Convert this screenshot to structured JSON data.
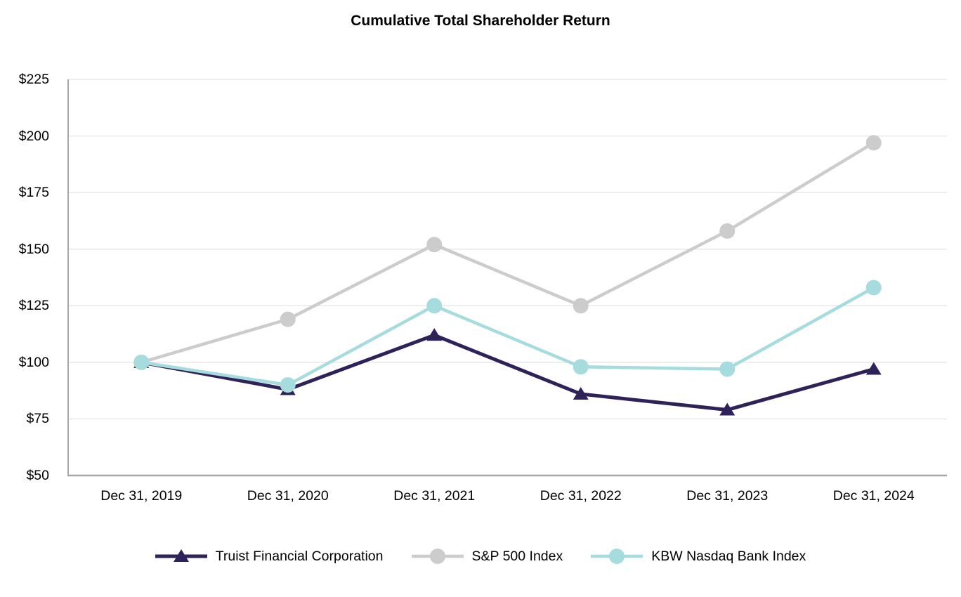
{
  "chart_data": {
    "type": "line",
    "title": "Cumulative Total Shareholder Return",
    "xlabel": "",
    "ylabel": "",
    "categories": [
      "Dec 31, 2019",
      "Dec 31, 2020",
      "Dec 31, 2021",
      "Dec 31, 2022",
      "Dec 31, 2023",
      "Dec 31, 2024"
    ],
    "series": [
      {
        "name": "Truist Financial Corporation",
        "marker": "triangle",
        "color": "#2e2258",
        "values": [
          100,
          88,
          112,
          86,
          79,
          97
        ]
      },
      {
        "name": "S&P 500 Index",
        "marker": "circle",
        "color": "#cccccc",
        "values": [
          100,
          119,
          152,
          125,
          158,
          197
        ]
      },
      {
        "name": "KBW Nasdaq Bank Index",
        "marker": "circle",
        "color": "#a6dcdd",
        "values": [
          100,
          90,
          125,
          98,
          97,
          133
        ]
      }
    ],
    "ylim": [
      50,
      225
    ],
    "yticks": [
      50,
      75,
      100,
      125,
      150,
      175,
      200,
      225
    ],
    "ytick_labels": [
      "$50",
      "$75",
      "$100",
      "$125",
      "$150",
      "$175",
      "$200",
      "$225"
    ],
    "grid": true,
    "legend_position": "bottom",
    "colors": {
      "gridline": "#e8e8e8",
      "axis_line": "#a6a6a6",
      "text": "#000000",
      "background": "#ffffff"
    }
  }
}
